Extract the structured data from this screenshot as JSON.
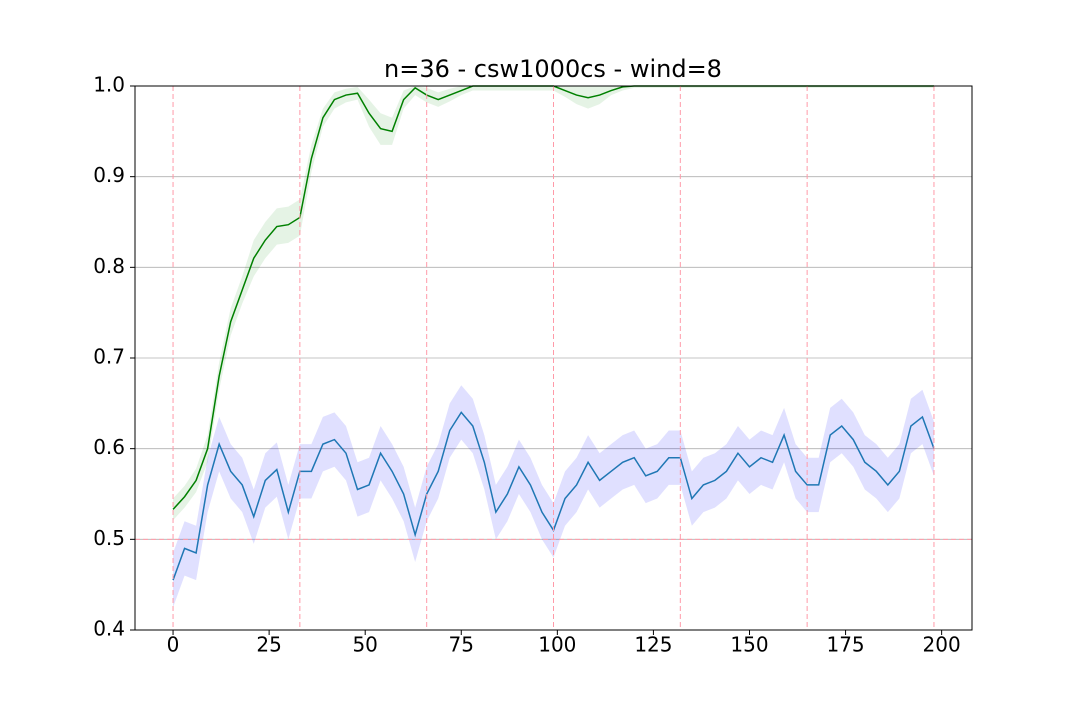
{
  "chart_data": {
    "type": "line",
    "title": "n=36 - csw1000cs - wind=8",
    "x": [
      0,
      3,
      6,
      9,
      12,
      15,
      18,
      21,
      24,
      27,
      30,
      33,
      36,
      39,
      42,
      45,
      48,
      51,
      54,
      57,
      60,
      63,
      66,
      69,
      72,
      75,
      78,
      81,
      84,
      87,
      90,
      93,
      96,
      99,
      102,
      105,
      108,
      111,
      114,
      117,
      120,
      123,
      126,
      129,
      132,
      135,
      138,
      141,
      144,
      147,
      150,
      153,
      156,
      159,
      162,
      165,
      168,
      171,
      174,
      177,
      180,
      183,
      186,
      189,
      192,
      195,
      198
    ],
    "series": [
      {
        "color": "#008000",
        "band_color": "#2ca02c",
        "values": [
          0.533,
          0.547,
          0.565,
          0.6,
          0.68,
          0.74,
          0.775,
          0.81,
          0.83,
          0.845,
          0.847,
          0.855,
          0.92,
          0.965,
          0.985,
          0.99,
          0.992,
          0.97,
          0.953,
          0.95,
          0.985,
          0.998,
          0.99,
          0.985,
          0.99,
          0.995,
          1,
          1,
          1,
          1,
          1,
          1,
          1,
          1,
          0.995,
          0.99,
          0.987,
          0.99,
          0.995,
          0.999,
          1,
          1,
          1,
          1,
          1,
          1,
          1,
          1,
          1,
          1,
          1,
          1,
          1,
          1,
          1,
          1,
          1,
          1,
          1,
          1,
          1,
          1,
          1,
          1,
          1,
          1,
          1
        ],
        "lower": [
          0.521,
          0.535,
          0.552,
          0.585,
          0.665,
          0.725,
          0.76,
          0.79,
          0.81,
          0.825,
          0.827,
          0.835,
          0.905,
          0.955,
          0.975,
          0.982,
          0.985,
          0.955,
          0.935,
          0.935,
          0.975,
          0.99,
          0.982,
          0.977,
          0.983,
          0.99,
          0.995,
          0.995,
          0.995,
          0.995,
          0.995,
          0.995,
          0.995,
          0.995,
          0.988,
          0.98,
          0.975,
          0.98,
          0.99,
          0.995,
          0.998,
          0.998,
          0.998,
          0.998,
          0.998,
          0.998,
          0.998,
          0.998,
          0.998,
          0.998,
          0.998,
          0.998,
          0.998,
          0.998,
          0.998,
          0.998,
          0.998,
          0.998,
          0.998,
          0.998,
          0.998,
          0.998,
          0.998,
          0.998,
          0.998,
          0.998,
          0.998
        ],
        "upper": [
          0.545,
          0.559,
          0.578,
          0.615,
          0.695,
          0.755,
          0.79,
          0.83,
          0.85,
          0.865,
          0.867,
          0.875,
          0.935,
          0.975,
          0.993,
          0.997,
          0.999,
          0.985,
          0.97,
          0.965,
          0.995,
          1,
          0.998,
          0.993,
          0.997,
          1,
          1,
          1,
          1,
          1,
          1,
          1,
          1,
          1,
          1,
          1,
          1,
          1,
          1,
          1,
          1,
          1,
          1,
          1,
          1,
          1,
          1,
          1,
          1,
          1,
          1,
          1,
          1,
          1,
          1,
          1,
          1,
          1,
          1,
          1,
          1,
          1,
          1,
          1,
          1,
          1,
          1
        ]
      },
      {
        "color": "#1f77b4",
        "band_color": "#0000ff",
        "values": [
          0.455,
          0.49,
          0.485,
          0.56,
          0.605,
          0.575,
          0.56,
          0.525,
          0.565,
          0.577,
          0.53,
          0.575,
          0.575,
          0.605,
          0.61,
          0.595,
          0.555,
          0.56,
          0.595,
          0.575,
          0.55,
          0.505,
          0.55,
          0.575,
          0.62,
          0.64,
          0.625,
          0.585,
          0.53,
          0.55,
          0.58,
          0.56,
          0.53,
          0.51,
          0.545,
          0.56,
          0.585,
          0.565,
          0.575,
          0.585,
          0.59,
          0.57,
          0.575,
          0.59,
          0.59,
          0.545,
          0.56,
          0.565,
          0.575,
          0.595,
          0.58,
          0.59,
          0.585,
          0.615,
          0.575,
          0.56,
          0.56,
          0.615,
          0.625,
          0.61,
          0.585,
          0.575,
          0.56,
          0.575,
          0.625,
          0.635,
          0.6
        ],
        "lower": [
          0.425,
          0.46,
          0.455,
          0.53,
          0.575,
          0.545,
          0.53,
          0.495,
          0.535,
          0.547,
          0.5,
          0.545,
          0.545,
          0.575,
          0.58,
          0.565,
          0.525,
          0.53,
          0.565,
          0.545,
          0.52,
          0.475,
          0.52,
          0.545,
          0.59,
          0.61,
          0.595,
          0.555,
          0.5,
          0.52,
          0.55,
          0.53,
          0.5,
          0.48,
          0.515,
          0.53,
          0.555,
          0.535,
          0.545,
          0.555,
          0.56,
          0.54,
          0.545,
          0.56,
          0.56,
          0.515,
          0.53,
          0.535,
          0.545,
          0.565,
          0.55,
          0.56,
          0.555,
          0.585,
          0.545,
          0.53,
          0.53,
          0.585,
          0.595,
          0.58,
          0.555,
          0.545,
          0.53,
          0.545,
          0.595,
          0.605,
          0.57
        ],
        "upper": [
          0.485,
          0.52,
          0.515,
          0.59,
          0.635,
          0.605,
          0.59,
          0.555,
          0.595,
          0.607,
          0.56,
          0.605,
          0.605,
          0.635,
          0.64,
          0.625,
          0.585,
          0.59,
          0.625,
          0.605,
          0.58,
          0.535,
          0.58,
          0.605,
          0.65,
          0.67,
          0.655,
          0.615,
          0.56,
          0.58,
          0.61,
          0.59,
          0.56,
          0.54,
          0.575,
          0.59,
          0.615,
          0.595,
          0.605,
          0.615,
          0.62,
          0.6,
          0.605,
          0.62,
          0.62,
          0.575,
          0.59,
          0.595,
          0.605,
          0.625,
          0.61,
          0.62,
          0.615,
          0.645,
          0.605,
          0.59,
          0.59,
          0.645,
          0.655,
          0.64,
          0.615,
          0.605,
          0.59,
          0.605,
          0.655,
          0.665,
          0.63
        ]
      }
    ],
    "xlim": [
      -9.9,
      207.9
    ],
    "ylim": [
      0.4,
      1.0
    ],
    "xticks": [
      0,
      25,
      50,
      75,
      100,
      125,
      150,
      175,
      200
    ],
    "yticks": [
      0.4,
      0.5,
      0.6,
      0.7,
      0.8,
      0.9,
      {
        "value": 1,
        "label": "1.0"
      }
    ],
    "grid": "y",
    "vlines": [
      0,
      33,
      66,
      99,
      132,
      165,
      198
    ],
    "hlines": [
      0.5
    ],
    "ref_color": "#ff9aa8"
  }
}
